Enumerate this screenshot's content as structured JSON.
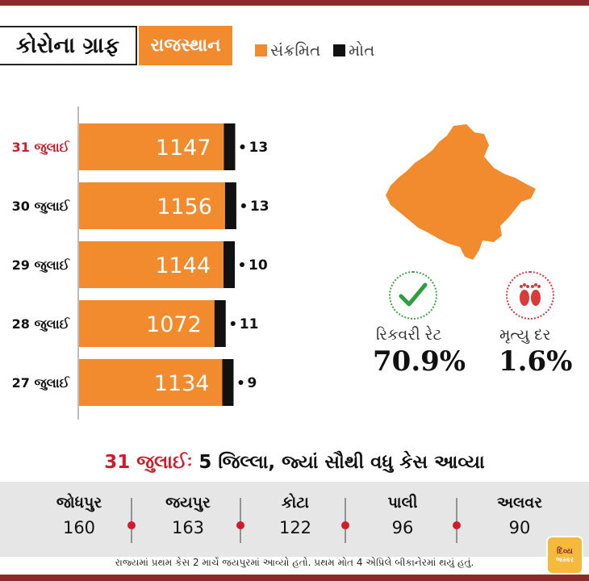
{
  "header": {
    "title": "કોરોના ગ્રાફ",
    "state": "રાજસ્થાન",
    "legend": [
      {
        "label": "સંક્રમિત",
        "color": "#f28a2e"
      },
      {
        "label": "મોત",
        "color": "#111111"
      }
    ]
  },
  "chart_data": {
    "type": "bar",
    "orientation": "horizontal",
    "stacked": true,
    "categories": [
      "31 જુલાઈ",
      "30 જુલાઈ",
      "29 જુલાઈ",
      "28 જુલાઈ",
      "27 જુલાઈ"
    ],
    "highlight_category": "31 જુલાઈ",
    "series": [
      {
        "name": "સંક્રમિત",
        "color": "#f28a2e",
        "values": [
          1147,
          1156,
          1144,
          1072,
          1134
        ]
      },
      {
        "name": "મોત",
        "color": "#111111",
        "values": [
          13,
          13,
          10,
          11,
          9
        ]
      }
    ],
    "grid": false,
    "legend_position": "top"
  },
  "stats": {
    "recovery": {
      "label": "રિકવરી રેટ",
      "value": "70.9%",
      "icon": "check-icon"
    },
    "death": {
      "label": "મૃત્યુ દર",
      "value": "1.6%",
      "icon": "footprints-icon"
    }
  },
  "districts": {
    "title_highlight": "31 જુલાઈઃ",
    "title_rest": "5 જિલ્લા, જ્યાં સૌથી વધુ કેસ આવ્યા",
    "items": [
      {
        "name": "જોધપુર",
        "value": "160"
      },
      {
        "name": "જયપુર",
        "value": "163"
      },
      {
        "name": "કોટા",
        "value": "122"
      },
      {
        "name": "પાલી",
        "value": "96"
      },
      {
        "name": "અલવર",
        "value": "90"
      }
    ]
  },
  "footnote": "રાજ્યમાં પ્રથમ કેસ 2 માર્ચે જયપુરમાં આવ્યો હતો. પ્રથમ મોત 4 એપ્રિલે બીકાનેરમાં થયું હતું.",
  "logo": {
    "line1": "દિવ્ય",
    "line2": "ભાસ્કર"
  }
}
